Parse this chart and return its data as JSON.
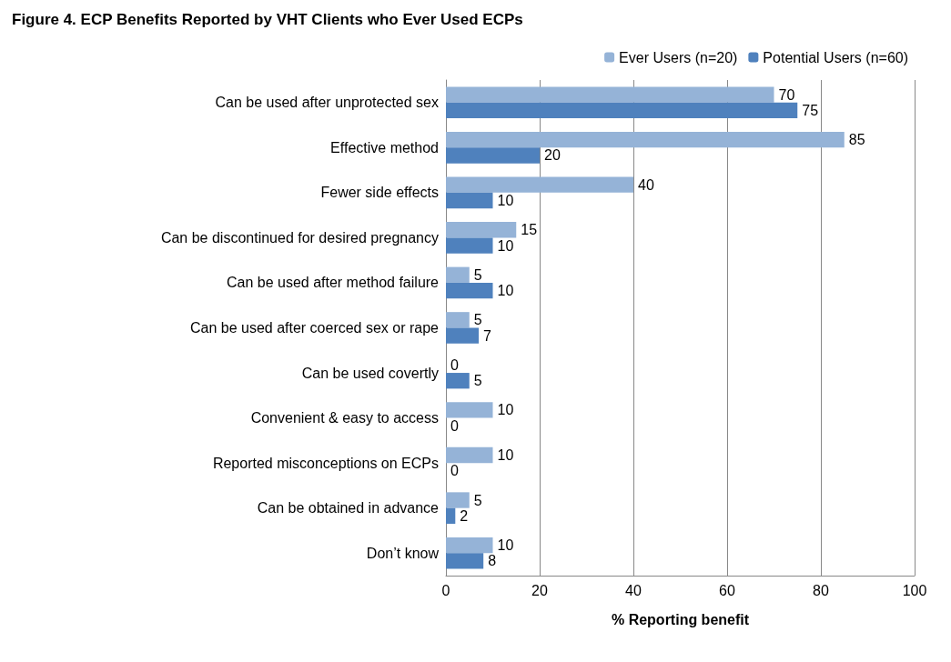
{
  "chart_data": {
    "type": "bar",
    "orientation": "horizontal",
    "title": "Figure 4. ECP Benefits Reported by VHT Clients who Ever Used ECPs",
    "xlabel": "% Reporting benefit",
    "categories": [
      "Can be used after unprotected sex",
      "Effective method",
      "Fewer side effects",
      "Can be discontinued for desired pregnancy",
      "Can be used after method failure",
      "Can be used after coerced sex or rape",
      "Can be used covertly",
      "Convenient & easy to access",
      "Reported misconceptions on ECPs",
      "Can be obtained in advance",
      "Don’t know"
    ],
    "series": [
      {
        "name": "Ever Users (n=20)",
        "color": "#95b3d7",
        "values": [
          70,
          85,
          40,
          15,
          5,
          5,
          0,
          10,
          10,
          5,
          10
        ]
      },
      {
        "name": "Potential Users (n=60)",
        "color": "#4f81bd",
        "values": [
          75,
          20,
          10,
          10,
          10,
          7,
          5,
          0,
          0,
          2,
          8
        ]
      }
    ],
    "xlim": [
      0,
      100
    ],
    "xticks": [
      0,
      20,
      40,
      60,
      80,
      100
    ],
    "grid": "x",
    "legend": "top right",
    "data_labels": true
  }
}
